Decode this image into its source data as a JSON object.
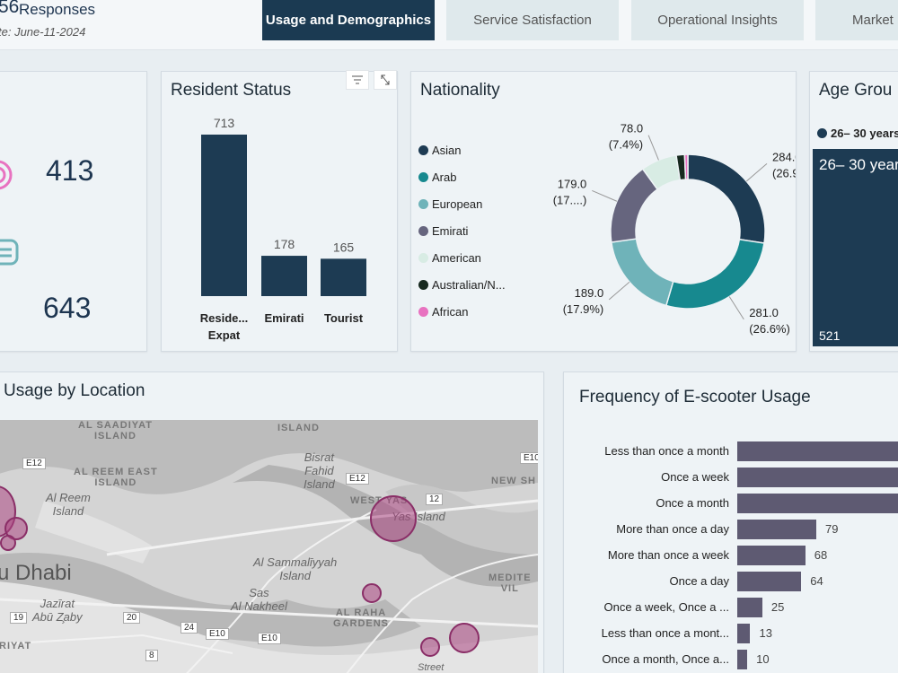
{
  "header": {
    "response_count": "56",
    "response_label": "Responses",
    "date_text": "te: June-11-2024"
  },
  "tabs": [
    {
      "label": "Usage and Demographics",
      "active": true
    },
    {
      "label": "Service Satisfaction",
      "active": false
    },
    {
      "label": "Operational Insights",
      "active": false
    },
    {
      "label": "Market",
      "active": false
    }
  ],
  "kpi": {
    "value_1": "413",
    "value_2": "643"
  },
  "resident_status": {
    "title": "Resident Status",
    "chart_data": {
      "type": "bar",
      "categories": [
        "Reside... Expat",
        "Emirati",
        "Tourist"
      ],
      "category_lines": [
        [
          "Reside...",
          "Expat"
        ],
        [
          "Emirati"
        ],
        [
          "Tourist"
        ]
      ],
      "values": [
        713,
        178,
        165
      ],
      "ylim": [
        0,
        713
      ],
      "color": "#1d3b53"
    }
  },
  "nationality": {
    "title": "Nationality",
    "legend": [
      {
        "label": "Asian",
        "color": "#1d3b53"
      },
      {
        "label": "Arab",
        "color": "#17898f"
      },
      {
        "label": "European",
        "color": "#6fb3b9"
      },
      {
        "label": "Emirati",
        "color": "#66657e"
      },
      {
        "label": "American",
        "color": "#d8ece4"
      },
      {
        "label": "Australian/N...",
        "color": "#17291f"
      },
      {
        "label": "African",
        "color": "#e872c0"
      }
    ],
    "chart_data": {
      "type": "pie",
      "labels": [
        "Asian",
        "Arab",
        "European",
        "Emirati",
        "American",
        "Australian/N...",
        "African"
      ],
      "values": [
        284.0,
        281.0,
        189.0,
        179.0,
        78.0,
        18,
        7
      ],
      "data_labels": [
        {
          "value": "284.0",
          "pct": "(26.9%)"
        },
        {
          "value": "281.0",
          "pct": "(26.6%)"
        },
        {
          "value": "189.0",
          "pct": "(17.9%)"
        },
        {
          "value": "179.0",
          "pct": "(17....)"
        },
        {
          "value": "78.0",
          "pct": "(7.4%)"
        }
      ]
    }
  },
  "age_group": {
    "title": "Age Grou",
    "legend_label": "26– 30 years",
    "tile_label": "26– 30 year",
    "tile_value": "521"
  },
  "usage_location": {
    "title": "Usage by Location",
    "map_labels": {
      "al_saadiyat": "AL SAADIYAT\nISLAND",
      "island": "ISLAND",
      "al_reem_east": "AL REEM EAST\nISLAND",
      "bisrat_fahid": "Bisrat\nFahid\nIsland",
      "al_reem_island": "Al Reem\nIsland",
      "new_sh": "NEW SH",
      "west_yas": "WEST YAS",
      "yas_island": "Yas Island",
      "abu_dhabi": "u Dhabi",
      "al_sammaliyyah": "Al Sammalīyyah\nIsland",
      "mediter": "MEDITE\nVIL",
      "jazirat": "Jazīrat\nAbū Z̧aby",
      "sas_al_nakheel": "Sas\nAl Nakheel",
      "al_raha": "AL RAHA\nGARDENS",
      "riyat": "RIYAT",
      "street": "Street"
    },
    "road_shields": [
      "E12",
      "E12",
      "E10",
      "12",
      "19",
      "20",
      "24",
      "E10",
      "E10",
      "8"
    ]
  },
  "frequency": {
    "title": "Frequency of E-scooter Usage",
    "chart_data": {
      "type": "bar",
      "orientation": "horizontal",
      "categories": [
        "Less than once a month",
        "Once a week",
        "Once a month",
        "More than once a day",
        "More than once a week",
        "Once a day",
        "Once a week, Once a ...",
        "Less than once a mont...",
        "Once a month, Once a..."
      ],
      "values": [
        null,
        null,
        null,
        79,
        68,
        64,
        25,
        13,
        10
      ],
      "value_labels": [
        "",
        "",
        "",
        "79",
        "68",
        "64",
        "25",
        "13",
        "10"
      ],
      "color": "#5e5a72"
    }
  }
}
